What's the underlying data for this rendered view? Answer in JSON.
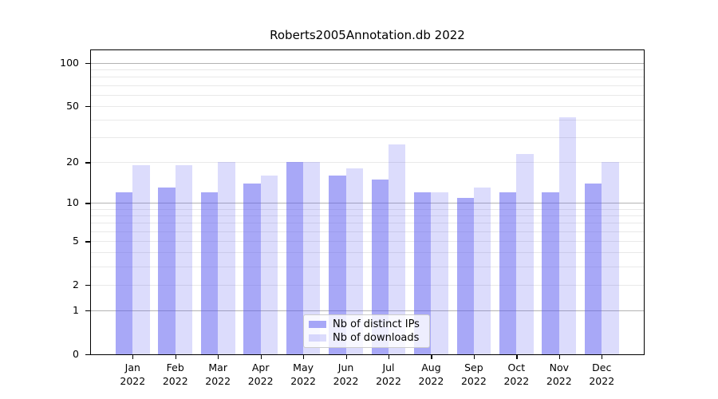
{
  "chart_data": {
    "type": "bar",
    "title": "Roberts2005Annotation.db 2022",
    "categories": [
      "Jan 2022",
      "Feb 2022",
      "Mar 2022",
      "Apr 2022",
      "May 2022",
      "Jun 2022",
      "Jul 2022",
      "Aug 2022",
      "Sep 2022",
      "Oct 2022",
      "Nov 2022",
      "Dec 2022"
    ],
    "series": [
      {
        "name": "Nb of distinct IPs",
        "color": "rgba(90,90,240,0.53)",
        "values": [
          12,
          13,
          12,
          14,
          20,
          16,
          15,
          12,
          11,
          12,
          12,
          14
        ]
      },
      {
        "name": "Nb of downloads",
        "color": "rgba(90,90,240,0.21)",
        "values": [
          19,
          19,
          20,
          16,
          20,
          18,
          27,
          12,
          13,
          23,
          42,
          20
        ]
      }
    ],
    "yscale": "log1p",
    "ylim": [
      0,
      123
    ],
    "xlabel": "",
    "ylabel": "",
    "grid": "on",
    "y_ticks": [
      {
        "label": "100",
        "value": 100
      },
      {
        "label": "50",
        "value": 50
      },
      {
        "label": "20",
        "value": 20
      },
      {
        "label": "10",
        "value": 10
      },
      {
        "label": "5",
        "value": 5
      },
      {
        "label": "2",
        "value": 2
      },
      {
        "label": "1",
        "value": 1
      },
      {
        "label": "0",
        "value": 0
      }
    ],
    "gridlines": {
      "decade_values": [
        1,
        10,
        100
      ],
      "minor_values": [
        2,
        3,
        4,
        5,
        6,
        7,
        8,
        9,
        20,
        30,
        40,
        50,
        60,
        70,
        80,
        90
      ],
      "decade_color": "#b3b3b3",
      "minor_color": "#e9e9e9"
    },
    "legend_position": "lower center"
  }
}
